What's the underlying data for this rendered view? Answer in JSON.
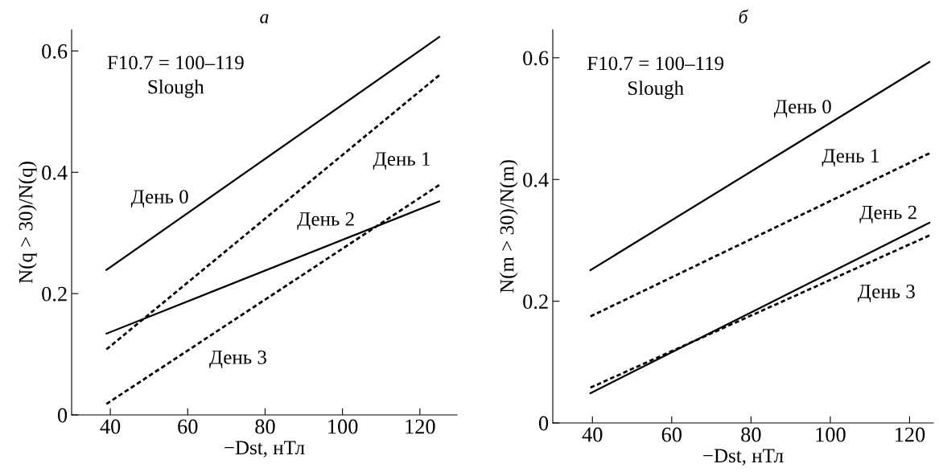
{
  "chart_data": [
    {
      "type": "line",
      "title": "а",
      "xlabel": "−Dst, нТл",
      "ylabel": "N(q > 30)/N(q)",
      "xlim": [
        30,
        129.6
      ],
      "xticks": [
        40,
        60,
        80,
        100,
        120
      ],
      "ylim": [
        0,
        0.635
      ],
      "yticks": [
        0,
        0.2,
        0.4,
        0.6
      ],
      "grid": false,
      "legend": false,
      "x": [
        39,
        125
      ],
      "series": [
        {
          "name": "День 0",
          "color": "#000000",
          "line_style": "solid",
          "values": [
            0.239,
            0.623
          ]
        },
        {
          "name": "День 1",
          "color": "#000000",
          "line_style": "dashed",
          "values": [
            0.108,
            0.56
          ]
        },
        {
          "name": "День 2",
          "color": "#000000",
          "line_style": "solid",
          "values": [
            0.134,
            0.352
          ]
        },
        {
          "name": "День 3",
          "color": "#000000",
          "line_style": "dashed",
          "values": [
            0.018,
            0.379
          ]
        }
      ],
      "annotations": [
        "F10.7 = 100–119",
        "Slough"
      ]
    },
    {
      "type": "line",
      "title": "б",
      "xlabel": "−Dst, нТл",
      "ylabel": "N(m > 30)/N(m)",
      "xlim": [
        30,
        126
      ],
      "xticks": [
        40,
        60,
        80,
        100,
        120
      ],
      "ylim": [
        0,
        0.646
      ],
      "yticks": [
        0,
        0.2,
        0.4,
        0.6
      ],
      "grid": false,
      "legend": false,
      "x": [
        39.5,
        125
      ],
      "series": [
        {
          "name": "День 0",
          "color": "#000000",
          "line_style": "solid",
          "values": [
            0.251,
            0.593
          ]
        },
        {
          "name": "День 1",
          "color": "#000000",
          "line_style": "dashed",
          "values": [
            0.175,
            0.443
          ]
        },
        {
          "name": "День 2",
          "color": "#000000",
          "line_style": "solid",
          "values": [
            0.049,
            0.329
          ]
        },
        {
          "name": "День 3",
          "color": "#000000",
          "line_style": "dashed",
          "values": [
            0.058,
            0.308
          ]
        }
      ],
      "annotations": [
        "F10.7 = 100–119",
        "Slough"
      ]
    }
  ]
}
